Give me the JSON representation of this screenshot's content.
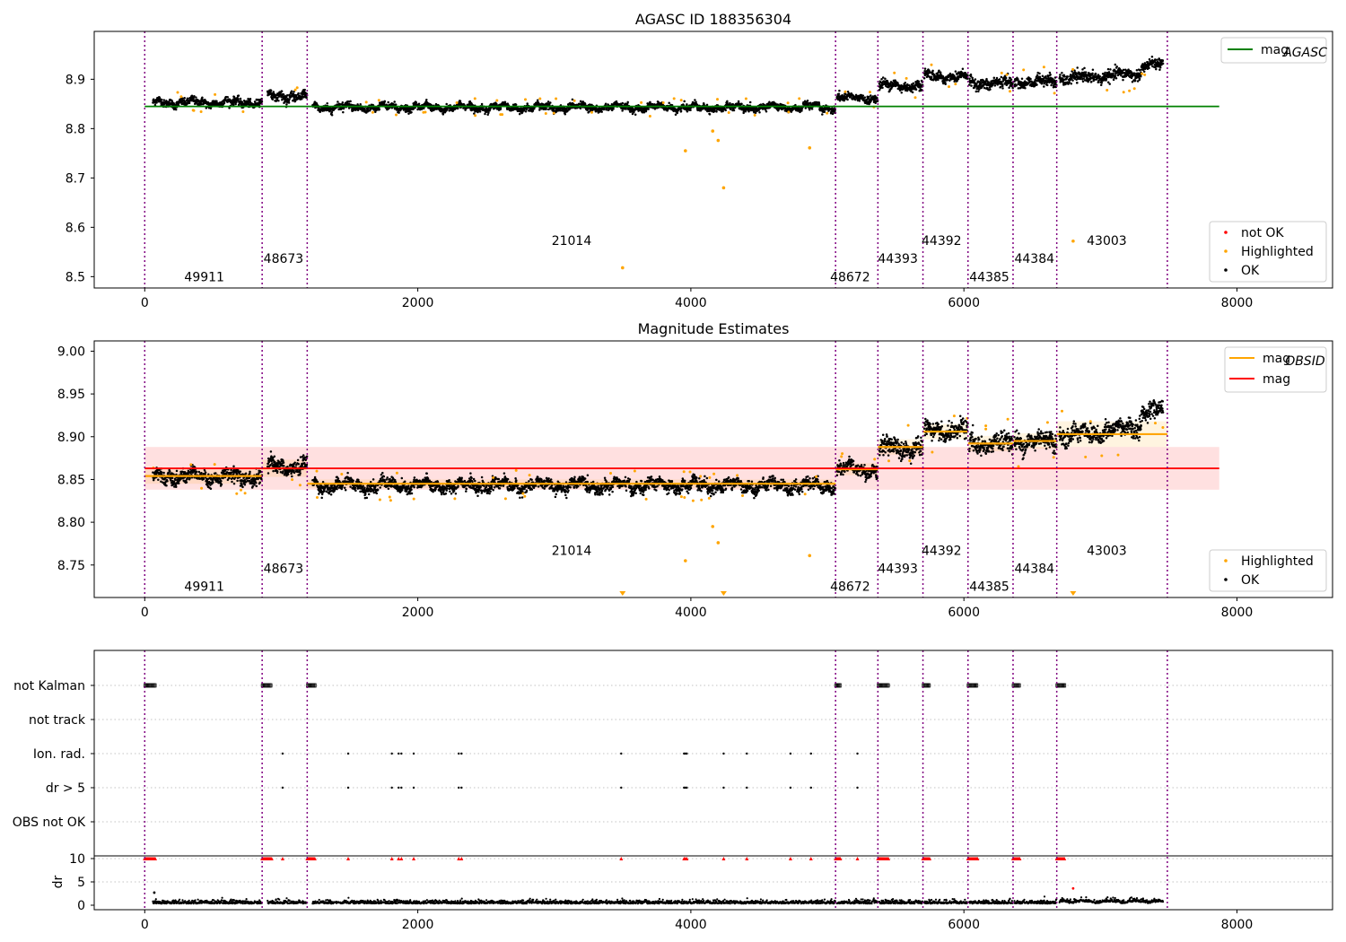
{
  "figure": {
    "title": "AGASC ID 188356304",
    "obs_boundaries": [
      0,
      860,
      1190,
      5060,
      5370,
      5700,
      6030,
      6360,
      6680,
      7490
    ],
    "colors": {
      "ok": "#000000",
      "highlighted": "#ffa500",
      "not_ok": "#ff0000",
      "agasc": "#008000",
      "obsid": "#ffa500",
      "mag": "#ff0000",
      "boundary": "#800080"
    }
  },
  "chart_data": [
    {
      "type": "scatter",
      "name": "agasc_panel",
      "title": "AGASC ID 188356304",
      "xlim": [
        -370,
        8700
      ],
      "ylim": [
        8.477,
        8.997
      ],
      "xticks": [
        0,
        2000,
        4000,
        6000,
        8000
      ],
      "xtick_labels": [
        "0",
        "2000",
        "4000",
        "6000",
        "8000"
      ],
      "yticks": [
        8.5,
        8.6,
        8.7,
        8.8,
        8.9
      ],
      "ytick_labels": [
        "8.5",
        "8.6",
        "8.7",
        "8.8",
        "8.9"
      ],
      "mag_agasc": 8.845,
      "mag_agasc_x": [
        0,
        7870
      ],
      "segments": [
        {
          "x0": 60,
          "x1": 860,
          "mean": 8.853,
          "trend": 0.0,
          "spread": 0.007
        },
        {
          "x0": 900,
          "x1": 1190,
          "mean": 8.865,
          "trend": 0.0,
          "spread": 0.008
        },
        {
          "x0": 1230,
          "x1": 5060,
          "mean": 8.843,
          "trend": 0.0,
          "spread": 0.006
        },
        {
          "x0": 5070,
          "x1": 5370,
          "mean": 8.862,
          "trend": 0.0,
          "spread": 0.007
        },
        {
          "x0": 5380,
          "x1": 5700,
          "mean": 8.887,
          "trend": 0.0,
          "spread": 0.009
        },
        {
          "x0": 5710,
          "x1": 6030,
          "mean": 8.906,
          "trend": 0.0,
          "spread": 0.009
        },
        {
          "x0": 6040,
          "x1": 6360,
          "mean": 8.892,
          "trend": 0.0,
          "spread": 0.01
        },
        {
          "x0": 6370,
          "x1": 6680,
          "mean": 8.895,
          "trend": 0.0,
          "spread": 0.01
        },
        {
          "x0": 6700,
          "x1": 7300,
          "mean": 8.9,
          "trend": 0.012,
          "spread": 0.01
        },
        {
          "x0": 7300,
          "x1": 7460,
          "mean": 8.93,
          "trend": 0.0,
          "spread": 0.008
        }
      ],
      "highlighted_points": [
        {
          "x": 3960,
          "y": 8.755
        },
        {
          "x": 4160,
          "y": 8.795
        },
        {
          "x": 4200,
          "y": 8.776
        },
        {
          "x": 4240,
          "y": 8.68
        },
        {
          "x": 4870,
          "y": 8.761
        },
        {
          "x": 3500,
          "y": 8.518
        },
        {
          "x": 6800,
          "y": 8.572
        }
      ],
      "obsid_labels": [
        {
          "x": 290,
          "y": 8.5,
          "text": "49911"
        },
        {
          "x": 870,
          "y": 8.537,
          "text": "48673"
        },
        {
          "x": 2980,
          "y": 8.573,
          "text": "21014"
        },
        {
          "x": 5020,
          "y": 8.5,
          "text": "48672"
        },
        {
          "x": 5370,
          "y": 8.537,
          "text": "44393"
        },
        {
          "x": 5690,
          "y": 8.573,
          "text": "44392"
        },
        {
          "x": 6040,
          "y": 8.5,
          "text": "44385"
        },
        {
          "x": 6370,
          "y": 8.537,
          "text": "44384"
        },
        {
          "x": 6900,
          "y": 8.573,
          "text": "43003"
        }
      ],
      "legend_top": [
        {
          "label": "mag",
          "sub": "AGASC",
          "color": "#008000",
          "kind": "line"
        }
      ],
      "legend_bottom": [
        {
          "label": "not OK",
          "color": "#ff0000",
          "kind": "dot"
        },
        {
          "label": "Highlighted",
          "color": "#ffa500",
          "kind": "dot"
        },
        {
          "label": "OK",
          "color": "#000000",
          "kind": "dot"
        }
      ]
    },
    {
      "type": "scatter",
      "name": "estimates_panel",
      "title": "Magnitude Estimates",
      "xlim": [
        -370,
        8700
      ],
      "ylim": [
        8.712,
        9.012
      ],
      "xticks": [
        0,
        2000,
        4000,
        6000,
        8000
      ],
      "xtick_labels": [
        "0",
        "2000",
        "4000",
        "6000",
        "8000"
      ],
      "yticks": [
        8.75,
        8.8,
        8.85,
        8.9,
        8.95,
        9.0
      ],
      "ytick_labels": [
        "8.75",
        "8.80",
        "8.85",
        "8.90",
        "8.95",
        "9.00"
      ],
      "mag": 8.863,
      "mag_band": [
        8.838,
        8.888
      ],
      "mag_x": [
        0,
        7870
      ],
      "obsid_means": [
        {
          "x0": 0,
          "x1": 860,
          "mean": 8.854,
          "band": [
            8.845,
            8.862
          ]
        },
        {
          "x0": 860,
          "x1": 1190,
          "mean": 8.863,
          "band": [
            8.853,
            8.873
          ]
        },
        {
          "x0": 1190,
          "x1": 5060,
          "mean": 8.845,
          "band": [
            8.84,
            8.85
          ]
        },
        {
          "x0": 5060,
          "x1": 5370,
          "mean": 8.862,
          "band": [
            8.855,
            8.869
          ]
        },
        {
          "x0": 5370,
          "x1": 5700,
          "mean": 8.888,
          "band": [
            8.879,
            8.897
          ]
        },
        {
          "x0": 5700,
          "x1": 6030,
          "mean": 8.906,
          "band": [
            8.897,
            8.915
          ]
        },
        {
          "x0": 6030,
          "x1": 6360,
          "mean": 8.892,
          "band": [
            8.883,
            8.901
          ]
        },
        {
          "x0": 6360,
          "x1": 6680,
          "mean": 8.895,
          "band": [
            8.886,
            8.904
          ]
        },
        {
          "x0": 6680,
          "x1": 7490,
          "mean": 8.903,
          "band": [
            8.888,
            8.918
          ]
        }
      ],
      "highlighted_points": [
        {
          "x": 3960,
          "y": 8.755
        },
        {
          "x": 4160,
          "y": 8.795
        },
        {
          "x": 4200,
          "y": 8.776
        },
        {
          "x": 4870,
          "y": 8.761
        }
      ],
      "offscale_markers": [
        {
          "x": 3500
        },
        {
          "x": 4240
        },
        {
          "x": 6800
        }
      ],
      "obsid_labels": [
        {
          "x": 290,
          "y": 8.725,
          "text": "49911"
        },
        {
          "x": 870,
          "y": 8.746,
          "text": "48673"
        },
        {
          "x": 2980,
          "y": 8.767,
          "text": "21014"
        },
        {
          "x": 5020,
          "y": 8.725,
          "text": "48672"
        },
        {
          "x": 5370,
          "y": 8.746,
          "text": "44393"
        },
        {
          "x": 5690,
          "y": 8.767,
          "text": "44392"
        },
        {
          "x": 6040,
          "y": 8.725,
          "text": "44385"
        },
        {
          "x": 6370,
          "y": 8.746,
          "text": "44384"
        },
        {
          "x": 6900,
          "y": 8.767,
          "text": "43003"
        }
      ],
      "legend_top": [
        {
          "label": "mag",
          "sub": "OBSID",
          "color": "#ffa500",
          "kind": "line"
        },
        {
          "label": "mag",
          "sub": "",
          "color": "#ff0000",
          "kind": "line"
        }
      ],
      "legend_bottom": [
        {
          "label": "Highlighted",
          "color": "#ffa500",
          "kind": "dot"
        },
        {
          "label": "OK",
          "color": "#000000",
          "kind": "dot"
        }
      ]
    },
    {
      "type": "scatter",
      "name": "flags_panel",
      "xlim": [
        -370,
        8700
      ],
      "xticks": [
        0,
        2000,
        4000,
        6000,
        8000
      ],
      "xtick_labels": [
        "0",
        "2000",
        "4000",
        "6000",
        "8000"
      ],
      "flag_rows": [
        "not Kalman",
        "not track",
        "Ion. rad.",
        "dr > 5",
        "OBS not OK"
      ],
      "not_kalman_ranges": [
        [
          0,
          80
        ],
        [
          860,
          930
        ],
        [
          1190,
          1250
        ],
        [
          5060,
          5100
        ],
        [
          5370,
          5450
        ],
        [
          5700,
          5750
        ],
        [
          6030,
          6100
        ],
        [
          6360,
          6410
        ],
        [
          6680,
          6740
        ]
      ],
      "ion_rad_x": [
        1010,
        1490,
        1810,
        1860,
        1880,
        1970,
        2300,
        2320,
        3490,
        3950,
        3960,
        3970,
        4240,
        4410,
        4730,
        4880,
        5220
      ],
      "dr5_x": [
        1010,
        1490,
        1810,
        1860,
        1880,
        1970,
        2300,
        2320,
        3490,
        3950,
        3960,
        3970,
        4240,
        4410,
        4730,
        4880,
        5220
      ],
      "dr": {
        "ylim": [
          -0.3,
          10.5
        ],
        "yticks": [
          0,
          5,
          10
        ],
        "ytick_labels": [
          "0",
          "5",
          "10"
        ],
        "ylabel": "dr",
        "clipped_ranges": [
          [
            0,
            80
          ],
          [
            860,
            930
          ],
          [
            1190,
            1250
          ],
          [
            5060,
            5100
          ],
          [
            5370,
            5450
          ],
          [
            5700,
            5750
          ],
          [
            6030,
            6100
          ],
          [
            6360,
            6410
          ],
          [
            6680,
            6740
          ]
        ],
        "clipped_x": [
          1010,
          1490,
          1810,
          1860,
          1880,
          1970,
          2300,
          2320,
          3490,
          3950,
          3960,
          3970,
          4240,
          4410,
          4730,
          4880,
          5220
        ],
        "outliers": [
          {
            "x": 70,
            "y": 2.7,
            "color": "#000000"
          },
          {
            "x": 6800,
            "y": 3.6,
            "color": "#ff0000"
          }
        ]
      }
    }
  ]
}
